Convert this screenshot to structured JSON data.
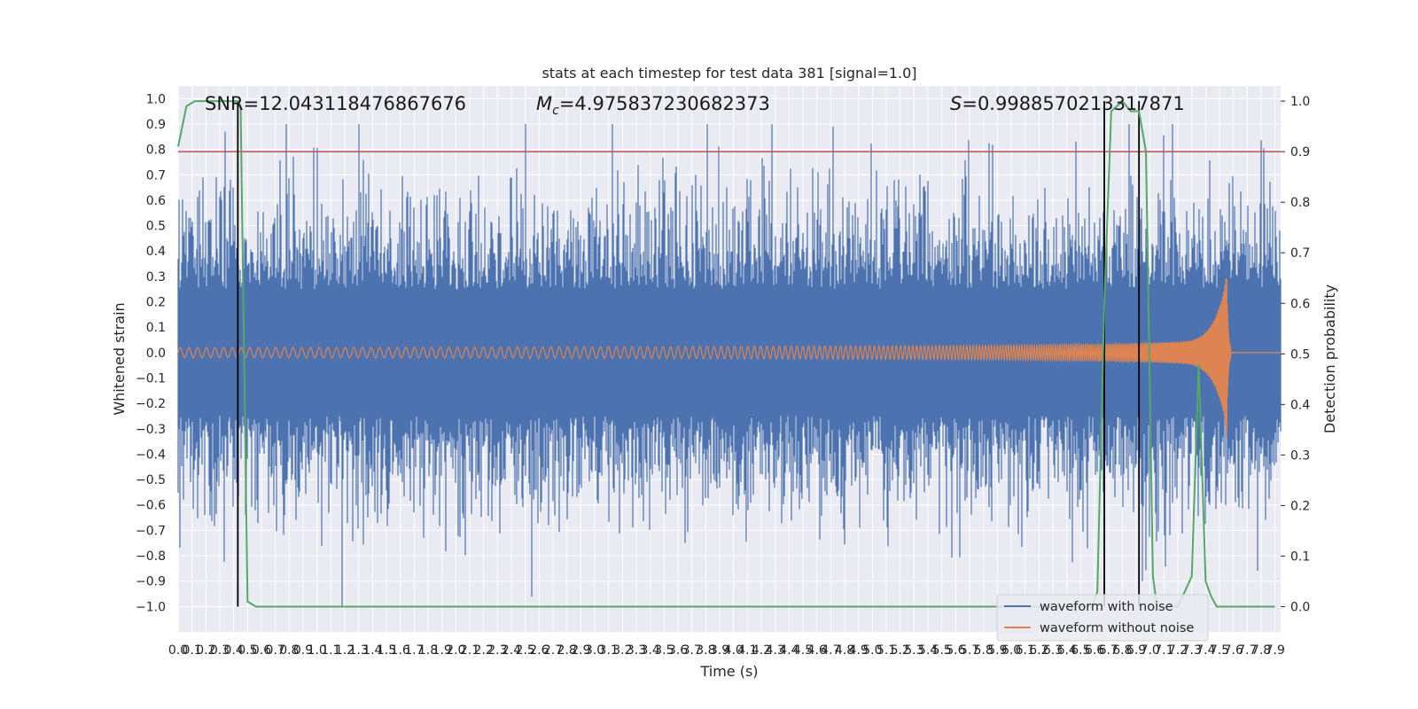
{
  "chart_data": {
    "type": "line",
    "title": "stats at each timestep for test data 381 [signal=1.0]",
    "xlabel": "Time (s)",
    "ylabel_left": "Whitened strain",
    "ylabel_right": "Detection probability",
    "xlim": [
      0.0,
      7.94
    ],
    "ylim_left": [
      -1.1,
      1.05
    ],
    "ylim_right": [
      -0.05,
      1.03
    ],
    "xticks": [
      "0.0",
      "0.1",
      "0.2",
      "0.3",
      "0.4",
      "0.5",
      "0.6",
      "0.7",
      "0.8",
      "0.9",
      "1.0",
      "1.1",
      "1.2",
      "1.3",
      "1.4",
      "1.5",
      "1.6",
      "1.7",
      "1.8",
      "1.9",
      "2.0",
      "2.1",
      "2.2",
      "2.3",
      "2.4",
      "2.5",
      "2.6",
      "2.7",
      "2.8",
      "2.9",
      "3.0",
      "3.1",
      "3.2",
      "3.3",
      "3.4",
      "3.5",
      "3.6",
      "3.7",
      "3.8",
      "3.9",
      "4.0",
      "4.1",
      "4.2",
      "4.3",
      "4.4",
      "4.5",
      "4.6",
      "4.7",
      "4.8",
      "4.9",
      "5.0",
      "5.1",
      "5.2",
      "5.3",
      "5.4",
      "5.5",
      "5.6",
      "5.7",
      "5.8",
      "5.9",
      "6.0",
      "6.1",
      "6.2",
      "6.3",
      "6.4",
      "6.5",
      "6.6",
      "6.7",
      "6.8",
      "6.9",
      "7.0",
      "7.1",
      "7.2",
      "7.3",
      "7.4",
      "7.5",
      "7.6",
      "7.7",
      "7.8",
      "7.9"
    ],
    "yticks_left": [
      "−1.0",
      "−0.9",
      "−0.8",
      "−0.7",
      "−0.6",
      "−0.5",
      "−0.4",
      "−0.3",
      "−0.2",
      "−0.1",
      "0.0",
      "0.1",
      "0.2",
      "0.3",
      "0.4",
      "0.5",
      "0.6",
      "0.7",
      "0.8",
      "0.9",
      "1.0"
    ],
    "yticks_right": [
      "0.0",
      "0.1",
      "0.2",
      "0.3",
      "0.4",
      "0.5",
      "0.6",
      "0.7",
      "0.8",
      "0.9",
      "1.0"
    ],
    "annotations": {
      "snr": "SNR=12.043118476867676",
      "mc": "=4.975837230682373",
      "mc_symbol": "M",
      "mc_subscript": "c",
      "s": "=0.9988570213317871",
      "s_symbol": "S"
    },
    "threshold": {
      "axis": "right",
      "value": 0.9,
      "color": "#c44e52"
    },
    "vertical_markers": [
      0.43,
      6.67,
      6.92
    ],
    "detection_probability": {
      "axis": "right",
      "color": "#55a868",
      "x": [
        0.0,
        0.06,
        0.12,
        0.2,
        0.3,
        0.38,
        0.43,
        0.45,
        0.5,
        0.56,
        0.62,
        1.0,
        2.0,
        3.0,
        4.0,
        5.0,
        6.0,
        6.4,
        6.5,
        6.58,
        6.62,
        6.67,
        6.72,
        6.8,
        6.86,
        6.92,
        6.97,
        7.02,
        7.05,
        7.12,
        7.2,
        7.3,
        7.35,
        7.4,
        7.44,
        7.48,
        7.52,
        7.6,
        7.7,
        7.8,
        7.9
      ],
      "y": [
        0.91,
        0.99,
        1.0,
        1.0,
        1.0,
        1.0,
        1.0,
        0.99,
        0.01,
        0.0,
        0.0,
        0.0,
        0.0,
        0.0,
        0.0,
        0.0,
        0.0,
        0.0,
        0.0,
        0.0,
        0.03,
        0.6,
        0.98,
        1.0,
        0.98,
        0.98,
        0.9,
        0.06,
        0.0,
        0.0,
        0.0,
        0.06,
        0.48,
        0.05,
        0.02,
        0.0,
        0.0,
        0.0,
        0.0,
        0.0,
        0.0
      ]
    },
    "series": [
      {
        "name": "waveform with noise",
        "axis": "left",
        "color": "#4c72b0",
        "approx_envelope": 0.45,
        "max_peak": 0.9,
        "min_peak": -1.0
      },
      {
        "name": "waveform without noise",
        "axis": "left",
        "color": "#dd8452",
        "start_amplitude": 0.02,
        "peak_time": 7.55,
        "peak_max": 0.29,
        "peak_min": -0.33,
        "merger_end": 7.58
      }
    ],
    "legend": {
      "placement": "lower-right"
    }
  }
}
